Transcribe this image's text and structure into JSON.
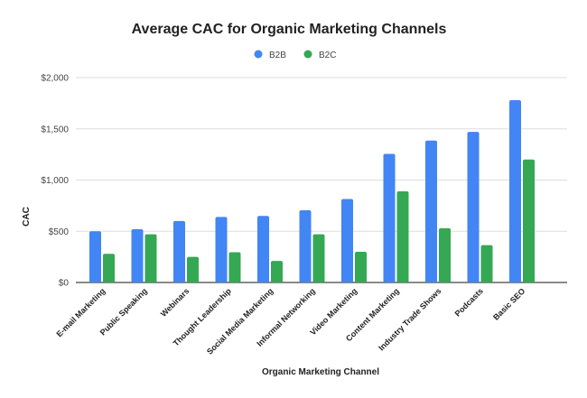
{
  "chart_data": {
    "type": "bar",
    "title": "Average CAC for Organic Marketing Channels",
    "xlabel": "Organic Marketing Channel",
    "ylabel": "CAC",
    "ylim": [
      0,
      2000
    ],
    "yticks": [
      0,
      500,
      1000,
      1500,
      2000
    ],
    "ytick_labels": [
      "$0",
      "$500",
      "$1,000",
      "$1,500",
      "$2,000"
    ],
    "grid": true,
    "legend_position": "top",
    "categories": [
      "E-mail Marketing",
      "Public Speaking",
      "Webinars",
      "Thought Leadership",
      "Social Media Marketing",
      "Informal Networking",
      "Video Marketing",
      "Content Marketing",
      "Industry Trade Shows",
      "Podcasts",
      "Basic SEO"
    ],
    "series": [
      {
        "name": "B2B",
        "color": "#4285f4",
        "values": [
          500,
          520,
          600,
          640,
          650,
          705,
          815,
          1255,
          1385,
          1470,
          1780
        ]
      },
      {
        "name": "B2C",
        "color": "#34a853",
        "values": [
          280,
          470,
          250,
          295,
          210,
          470,
          300,
          890,
          530,
          365,
          1200
        ]
      }
    ]
  }
}
